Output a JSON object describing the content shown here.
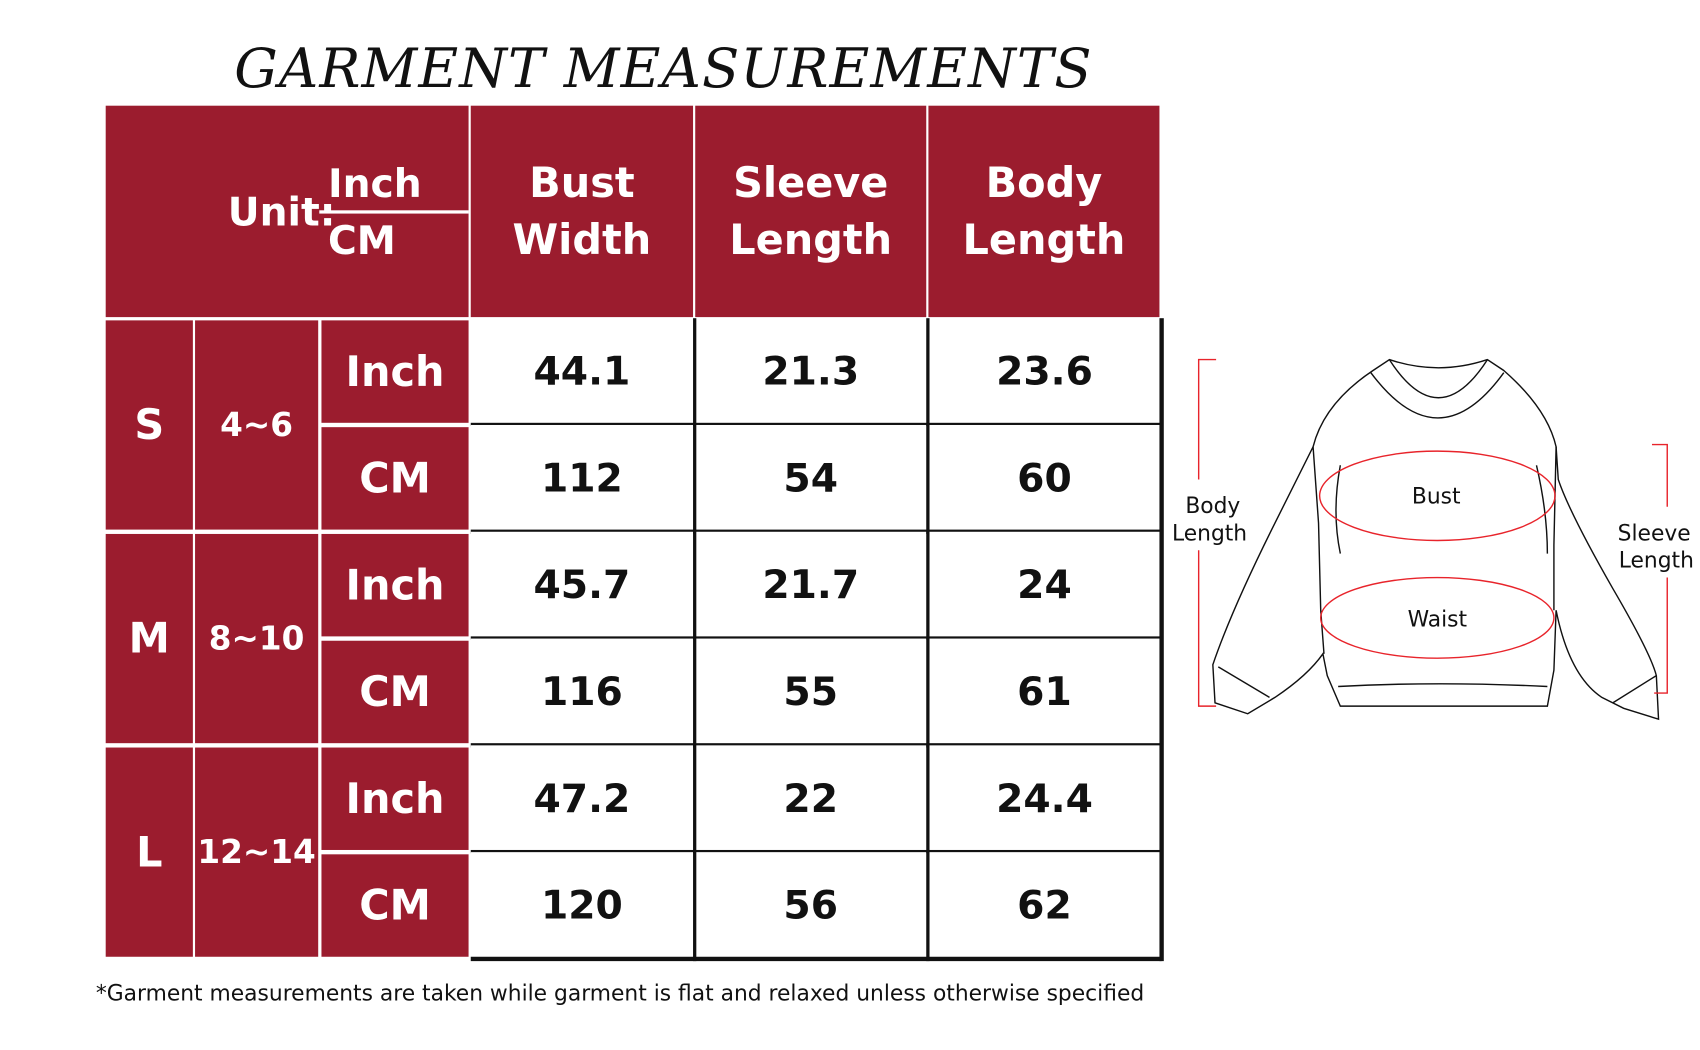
{
  "title": "GARMENT MEASUREMENTS",
  "header": {
    "unit_label": "Unit:",
    "unit_inch": "Inch",
    "unit_cm": "CM",
    "columns": [
      {
        "line1": "Bust",
        "line2": "Width"
      },
      {
        "line1": "Sleeve",
        "line2": "Length"
      },
      {
        "line1": "Body",
        "line2": "Length"
      }
    ]
  },
  "sizes": [
    {
      "size": "S",
      "age": "4~6",
      "rows": [
        {
          "unit": "Inch",
          "values": [
            "44.1",
            "21.3",
            "23.6"
          ]
        },
        {
          "unit": "CM",
          "values": [
            "112",
            "54",
            "60"
          ]
        }
      ]
    },
    {
      "size": "M",
      "age": "8~10",
      "rows": [
        {
          "unit": "Inch",
          "values": [
            "45.7",
            "21.7",
            "24"
          ]
        },
        {
          "unit": "CM",
          "values": [
            "116",
            "55",
            "61"
          ]
        }
      ]
    },
    {
      "size": "L",
      "age": "12~14",
      "rows": [
        {
          "unit": "Inch",
          "values": [
            "47.2",
            "22",
            "24.4"
          ]
        },
        {
          "unit": "CM",
          "values": [
            "120",
            "56",
            "62"
          ]
        }
      ]
    }
  ],
  "footnote": "*Garment measurements are taken while garment is flat and relaxed unless otherwise specified",
  "diagram": {
    "body_length": [
      "Body",
      "Length"
    ],
    "sleeve_length": [
      "Sleeve",
      "Length"
    ],
    "bust": "Bust",
    "waist": "Waist"
  },
  "colors": {
    "header": "#9b1c2e",
    "measure_lines": "#e8242b"
  }
}
